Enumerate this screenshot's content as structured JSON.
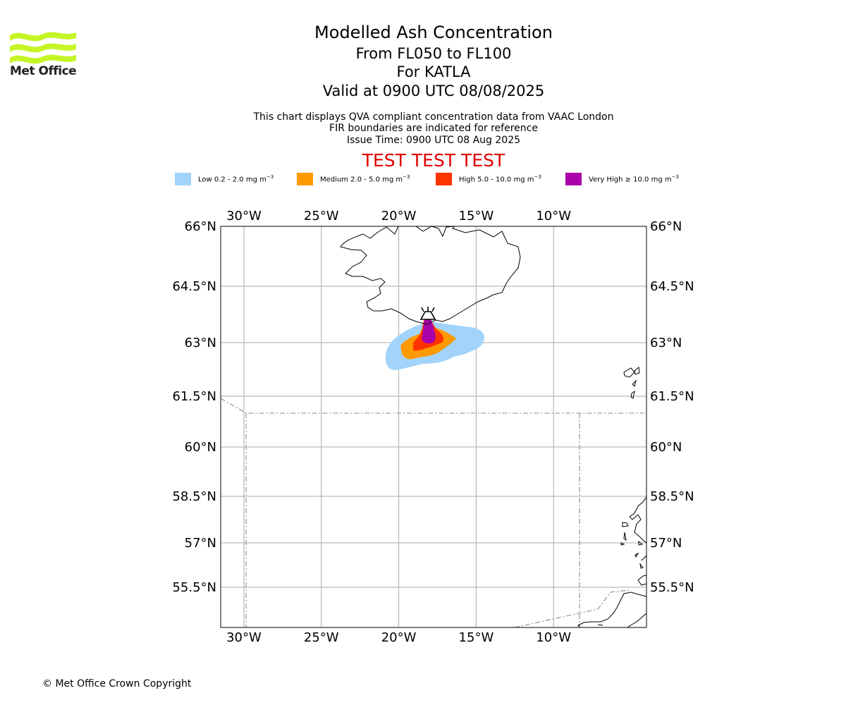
{
  "logo": {
    "text": "Met Office",
    "color": "#c6f526"
  },
  "header": {
    "title": "Modelled Ash Concentration",
    "levels": "From FL050 to FL100",
    "volcano": "For KATLA",
    "valid": "Valid at 0900 UTC 08/08/2025",
    "note1": "This chart displays QVA compliant concentration data from VAAC London",
    "note2": "FIR boundaries are indicated for reference",
    "issue": "Issue Time: 0900 UTC 08 Aug 2025",
    "warning": "TEST TEST TEST"
  },
  "legend": [
    {
      "label": "Low 0.2 - 2.0 mg m",
      "color": "#a2d4fb"
    },
    {
      "label": "Medium 2.0 - 5.0 mg m",
      "color": "#ff9900"
    },
    {
      "label": "High 5.0 - 10.0 mg m",
      "color": "#ff3300"
    },
    {
      "label": "Very High  ≥  10.0 mg m",
      "color": "#aa00aa"
    }
  ],
  "legend_unit_exponent": "−3",
  "map": {
    "lon_range": [
      -31.5,
      -4.0
    ],
    "lat_range": [
      54.2,
      66.0
    ],
    "lon_ticks": [
      {
        "value": -30,
        "label": "30°W"
      },
      {
        "value": -25,
        "label": "25°W"
      },
      {
        "value": -20,
        "label": "20°W"
      },
      {
        "value": -15,
        "label": "15°W"
      },
      {
        "value": -10,
        "label": "10°W"
      }
    ],
    "lat_ticks": [
      {
        "value": 66.0,
        "label": "66°N"
      },
      {
        "value": 64.5,
        "label": "64.5°N"
      },
      {
        "value": 63.0,
        "label": "63°N"
      },
      {
        "value": 61.5,
        "label": "61.5°N"
      },
      {
        "value": 60.0,
        "label": "60°N"
      },
      {
        "value": 58.5,
        "label": "58.5°N"
      },
      {
        "value": 57.0,
        "label": "57°N"
      },
      {
        "value": 55.5,
        "label": "55.5°N"
      }
    ],
    "volcano_location": {
      "lon": -19.0,
      "lat": 63.6
    }
  },
  "footer": {
    "copyright": "© Met Office Crown Copyright"
  }
}
